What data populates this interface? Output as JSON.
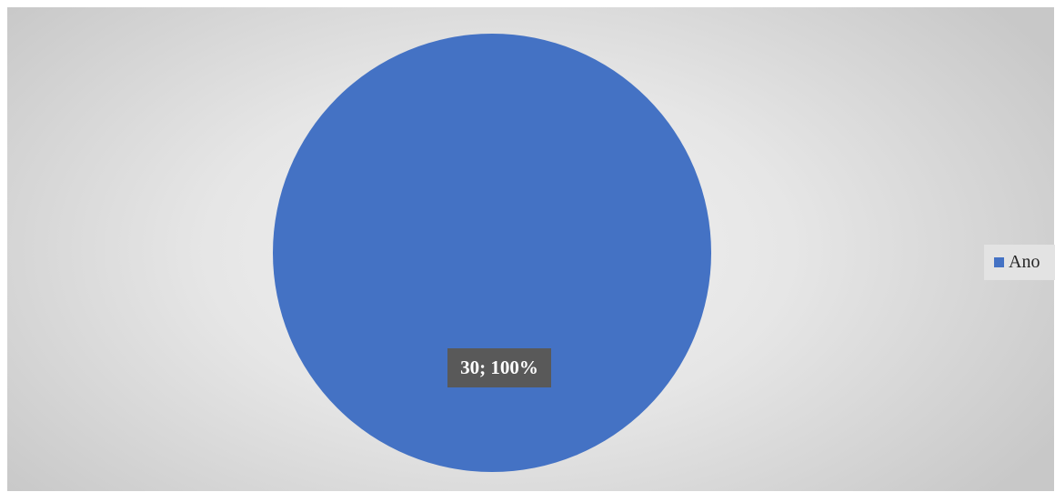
{
  "chart_data": {
    "type": "pie",
    "slices": [
      {
        "name": "Ano",
        "value": 30,
        "percent": 100,
        "color": "#4472C4"
      }
    ],
    "data_label": "30; 100%",
    "legend": {
      "position": "right",
      "entries": [
        "Ano"
      ]
    },
    "label_bg_color": "#595959"
  }
}
